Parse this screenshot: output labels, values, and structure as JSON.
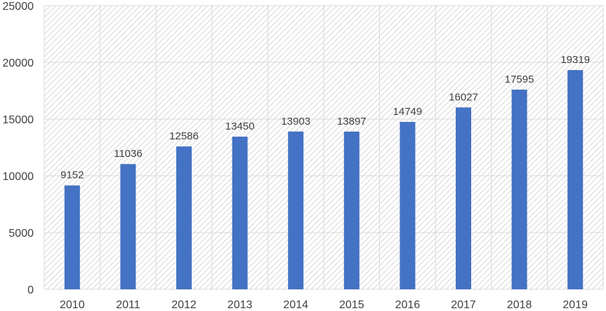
{
  "colors": {
    "bar": "#4472C4",
    "gridline": "#d9d9d9",
    "hatch": "#d9d9d9",
    "text": "#404040"
  },
  "chart_data": {
    "type": "bar",
    "title": "",
    "xlabel": "",
    "ylabel": "",
    "categories": [
      "2010",
      "2011",
      "2012",
      "2013",
      "2014",
      "2015",
      "2016",
      "2017",
      "2018",
      "2019"
    ],
    "values": [
      9152,
      11036,
      12586,
      13450,
      13903,
      13897,
      14749,
      16027,
      17595,
      19319
    ],
    "ylim": [
      0,
      25000
    ],
    "yticks": [
      0,
      5000,
      10000,
      15000,
      20000,
      25000
    ],
    "grid": true,
    "legend": "none",
    "data_labels": true,
    "plot_background": "diagonal-hatch"
  }
}
